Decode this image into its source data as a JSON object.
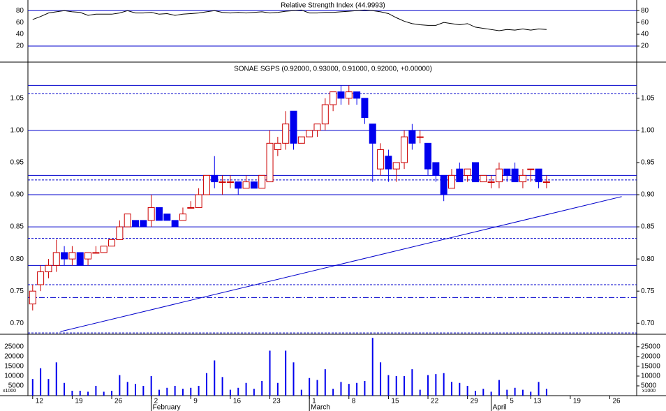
{
  "chart_data": [
    {
      "type": "line",
      "title": "Relative Strength Index (44.9993)",
      "color": "#000000",
      "values": [
        65,
        70,
        76,
        78,
        80,
        78,
        77,
        72,
        74,
        74,
        74,
        76,
        80,
        76,
        76,
        77,
        74,
        75,
        72,
        74,
        75,
        76,
        78,
        80,
        77,
        76,
        77,
        76,
        77,
        78,
        76,
        77,
        79,
        80,
        81,
        76,
        76,
        77,
        77,
        78,
        79,
        80,
        81,
        80,
        78,
        75,
        68,
        62,
        58,
        56,
        55,
        55,
        60,
        58,
        56,
        58,
        52,
        50,
        48,
        46,
        48,
        47,
        49,
        47,
        49,
        48
      ],
      "xlim": [
        -0.6,
        76.4
      ],
      "ylim": [
        -6,
        98
      ],
      "yticks": [
        20,
        40,
        60,
        80
      ],
      "levels": [
        {
          "value": 80,
          "style": "solid",
          "color": "#0000cc"
        },
        {
          "value": 20,
          "style": "solid",
          "color": "#0000cc"
        }
      ]
    },
    {
      "type": "candlestick",
      "title": "SONAE SGPS (0.92000, 0.93000, 0.91000, 0.92000, +0.00000)",
      "up_color": "#cc0000",
      "down_color": "#0000ee",
      "open": [
        0.73,
        0.76,
        0.78,
        0.79,
        0.81,
        0.8,
        0.81,
        0.8,
        0.81,
        0.81,
        0.82,
        0.83,
        0.85,
        0.86,
        0.86,
        0.86,
        0.88,
        0.87,
        0.86,
        0.86,
        0.88,
        0.88,
        0.9,
        0.93,
        0.92,
        0.92,
        0.92,
        0.91,
        0.92,
        0.91,
        0.92,
        0.97,
        0.98,
        1.03,
        0.98,
        0.99,
        1.0,
        1.01,
        1.04,
        1.06,
        1.05,
        1.06,
        1.05,
        1.01,
        0.94,
        0.96,
        0.94,
        0.95,
        1.0,
        0.99,
        0.98,
        0.95,
        0.93,
        0.91,
        0.94,
        0.93,
        0.95,
        0.92,
        0.92,
        0.92,
        0.94,
        0.94,
        0.92,
        0.94,
        0.94,
        0.92
      ],
      "high": [
        0.76,
        0.79,
        0.8,
        0.83,
        0.82,
        0.82,
        0.81,
        0.81,
        0.82,
        0.82,
        0.83,
        0.86,
        0.87,
        0.86,
        0.86,
        0.9,
        0.88,
        0.87,
        0.86,
        0.88,
        0.89,
        0.91,
        0.93,
        0.96,
        0.93,
        0.93,
        0.92,
        0.93,
        0.92,
        0.93,
        1.0,
        0.99,
        1.03,
        1.03,
        0.99,
        1.0,
        1.01,
        1.05,
        1.06,
        1.07,
        1.07,
        1.06,
        1.05,
        1.01,
        0.98,
        0.97,
        0.95,
        1.0,
        1.01,
        1.0,
        0.98,
        0.95,
        0.93,
        0.94,
        0.95,
        0.94,
        0.95,
        0.93,
        0.93,
        0.95,
        0.94,
        0.95,
        0.94,
        0.94,
        0.94,
        0.93
      ],
      "low": [
        0.72,
        0.75,
        0.77,
        0.78,
        0.79,
        0.79,
        0.79,
        0.79,
        0.81,
        0.81,
        0.82,
        0.83,
        0.85,
        0.85,
        0.85,
        0.85,
        0.86,
        0.86,
        0.85,
        0.86,
        0.88,
        0.88,
        0.9,
        0.91,
        0.9,
        0.91,
        0.9,
        0.91,
        0.91,
        0.91,
        0.92,
        0.96,
        0.97,
        0.97,
        0.98,
        0.99,
        0.99,
        1.0,
        1.03,
        1.04,
        1.04,
        1.04,
        1.01,
        0.92,
        0.93,
        0.92,
        0.92,
        0.94,
        0.97,
        0.98,
        0.93,
        0.92,
        0.89,
        0.91,
        0.92,
        0.92,
        0.92,
        0.92,
        0.91,
        0.91,
        0.92,
        0.92,
        0.91,
        0.92,
        0.91,
        0.91
      ],
      "close": [
        0.75,
        0.78,
        0.79,
        0.81,
        0.8,
        0.81,
        0.79,
        0.81,
        0.81,
        0.82,
        0.83,
        0.85,
        0.87,
        0.85,
        0.85,
        0.88,
        0.86,
        0.86,
        0.85,
        0.87,
        0.88,
        0.9,
        0.93,
        0.92,
        0.92,
        0.92,
        0.91,
        0.92,
        0.91,
        0.93,
        0.98,
        0.98,
        1.01,
        0.98,
        0.99,
        1.0,
        1.01,
        1.04,
        1.06,
        1.05,
        1.06,
        1.05,
        1.02,
        0.98,
        0.97,
        0.94,
        0.95,
        0.99,
        0.98,
        0.99,
        0.94,
        0.93,
        0.9,
        0.93,
        0.92,
        0.94,
        0.92,
        0.93,
        0.92,
        0.94,
        0.93,
        0.92,
        0.93,
        0.94,
        0.92,
        0.92
      ],
      "xlim": [
        -0.6,
        76.4
      ],
      "ylim": [
        0.684,
        1.103
      ],
      "yticks": [
        {
          "value": 0.7,
          "label": "0.70"
        },
        0.75,
        {
          "value": 0.8,
          "label": "0.80"
        },
        0.85,
        {
          "value": 0.9,
          "label": "0.90"
        },
        0.95,
        {
          "value": 1.0,
          "label": "1.00"
        },
        1.05
      ],
      "levels": [
        {
          "value": 1.07,
          "style": "solid",
          "color": "#0000cc"
        },
        {
          "value": 1.057,
          "style": "dashed",
          "color": "#0000cc"
        },
        {
          "value": 1.0,
          "style": "solid",
          "color": "#0000cc"
        },
        {
          "value": 0.93,
          "style": "solid",
          "color": "#0000cc"
        },
        {
          "value": 0.923,
          "style": "dashed",
          "color": "#0000cc"
        },
        {
          "value": 0.9,
          "style": "solid",
          "color": "#0000cc"
        },
        {
          "value": 0.85,
          "style": "solid",
          "color": "#0000cc"
        },
        {
          "value": 0.832,
          "style": "dashed",
          "color": "#0000cc"
        },
        {
          "value": 0.79,
          "style": "solid",
          "color": "#0000cc"
        },
        {
          "value": 0.76,
          "style": "dashed",
          "color": "#0000cc"
        },
        {
          "value": 0.74,
          "style": "dashdot",
          "color": "#0000cc"
        },
        {
          "value": 0.685,
          "style": "dashed",
          "color": "#0000cc"
        }
      ],
      "trendline": {
        "from": [
          3.5,
          0.687
        ],
        "to": [
          74.5,
          0.897
        ],
        "color": "#0000cc"
      }
    },
    {
      "type": "bar",
      "color": "#0000ee",
      "units_label": "x1000",
      "values": [
        8500,
        14000,
        8500,
        17000,
        6500,
        2500,
        2500,
        2000,
        5000,
        2000,
        2500,
        10500,
        7000,
        6000,
        5000,
        10000,
        3000,
        4000,
        5000,
        3500,
        4000,
        5000,
        11500,
        18000,
        9500,
        3000,
        4000,
        6500,
        3500,
        7500,
        23000,
        6500,
        23000,
        17000,
        3000,
        9000,
        8000,
        13500,
        3500,
        7000,
        6000,
        6500,
        7500,
        29500,
        17000,
        10500,
        10000,
        10000,
        13500,
        3000,
        10500,
        11000,
        11500,
        7000,
        6500,
        5000,
        2500,
        3500,
        2000,
        8000,
        3000,
        4000,
        3000,
        2000,
        7000,
        3500
      ],
      "xlim": [
        -0.6,
        76.4
      ],
      "ylim": [
        0,
        31000
      ],
      "yticks": [
        5000,
        10000,
        15000,
        20000,
        25000
      ],
      "xticks": [
        {
          "value": 0,
          "label": "12"
        },
        {
          "value": 5,
          "label": "19"
        },
        {
          "value": 10,
          "label": "26"
        },
        {
          "value": 15,
          "label": "2"
        },
        {
          "value": 20,
          "label": "9"
        },
        {
          "value": 25,
          "label": "16"
        },
        {
          "value": 30,
          "label": "23"
        },
        {
          "value": 35,
          "label": "1"
        },
        {
          "value": 40,
          "label": "8"
        },
        {
          "value": 45,
          "label": "15"
        },
        {
          "value": 50,
          "label": "22"
        },
        {
          "value": 55,
          "label": "29"
        },
        {
          "value": 60,
          "label": "5"
        },
        {
          "value": 63,
          "label": "13"
        },
        {
          "value": 68,
          "label": "19"
        },
        {
          "value": 73,
          "label": "26"
        }
      ],
      "months": [
        {
          "value": 15,
          "label": "February"
        },
        {
          "value": 35,
          "label": "March"
        },
        {
          "value": 58,
          "label": "April"
        }
      ]
    }
  ]
}
